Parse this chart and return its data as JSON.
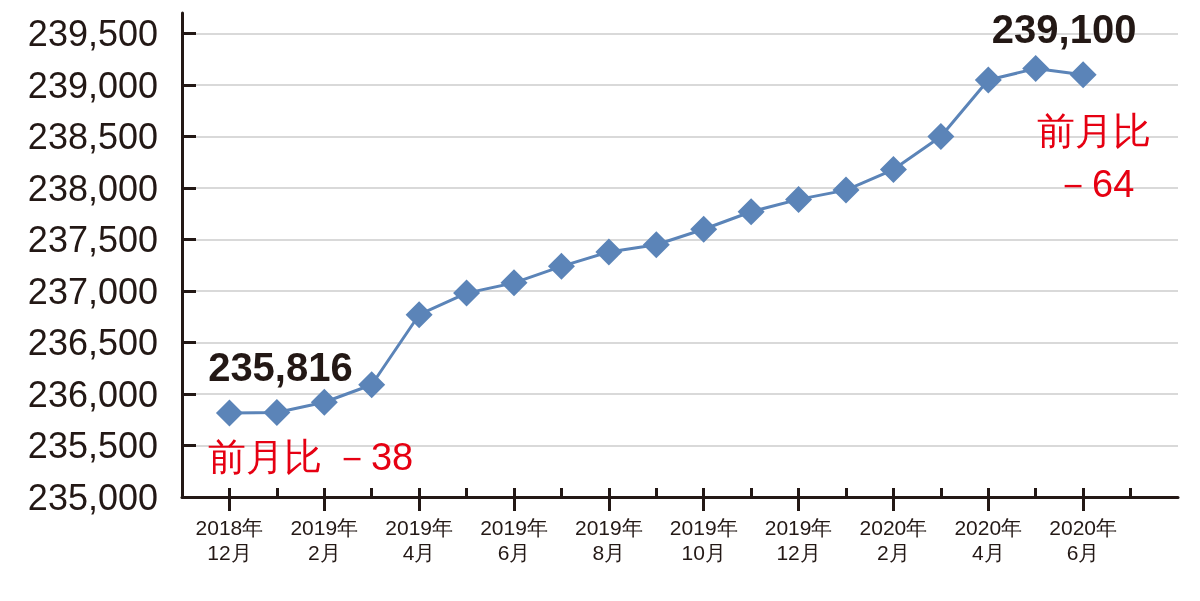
{
  "chart_data": {
    "type": "line",
    "categories": [
      "2018年\n12月",
      null,
      "2019年\n2月",
      null,
      "2019年\n4月",
      null,
      "2019年\n6月",
      null,
      "2019年\n8月",
      null,
      "2019年\n10月",
      null,
      "2019年\n12月",
      null,
      "2020年\n2月",
      null,
      "2020年\n4月",
      null,
      "2020年\n6月",
      null
    ],
    "values": [
      235816,
      235820,
      235920,
      236090,
      236770,
      236980,
      237080,
      237240,
      237380,
      237450,
      237600,
      237770,
      237890,
      237980,
      238180,
      238500,
      239050,
      239160,
      239100,
      null
    ],
    "value_labels": [
      "235,816",
      null,
      null,
      null,
      null,
      null,
      null,
      null,
      null,
      null,
      null,
      null,
      null,
      null,
      null,
      null,
      null,
      null,
      "239,100",
      null
    ],
    "color": "#5b84b8",
    "ylim": [
      235000,
      239700
    ],
    "yticks": [
      {
        "value": 235000,
        "label": "235,000"
      },
      {
        "value": 235500,
        "label": "235,500"
      },
      {
        "value": 236000,
        "label": "236,000"
      },
      {
        "value": 236500,
        "label": "236,500"
      },
      {
        "value": 237000,
        "label": "237,000"
      },
      {
        "value": 237500,
        "label": "237,500"
      },
      {
        "value": 238000,
        "label": "238,000"
      },
      {
        "value": 238500,
        "label": "238,500"
      },
      {
        "value": 239000,
        "label": "239,000"
      },
      {
        "value": 239500,
        "label": "239,500"
      }
    ],
    "annotations": [
      {
        "text": "前月比 －38",
        "x": "2018年\n12月",
        "y": 235816
      },
      {
        "text": "前月比－64",
        "x": "2020年\n6月",
        "y": 239100
      }
    ],
    "grid": "y",
    "marker": "diamond",
    "line_style": "solid"
  }
}
